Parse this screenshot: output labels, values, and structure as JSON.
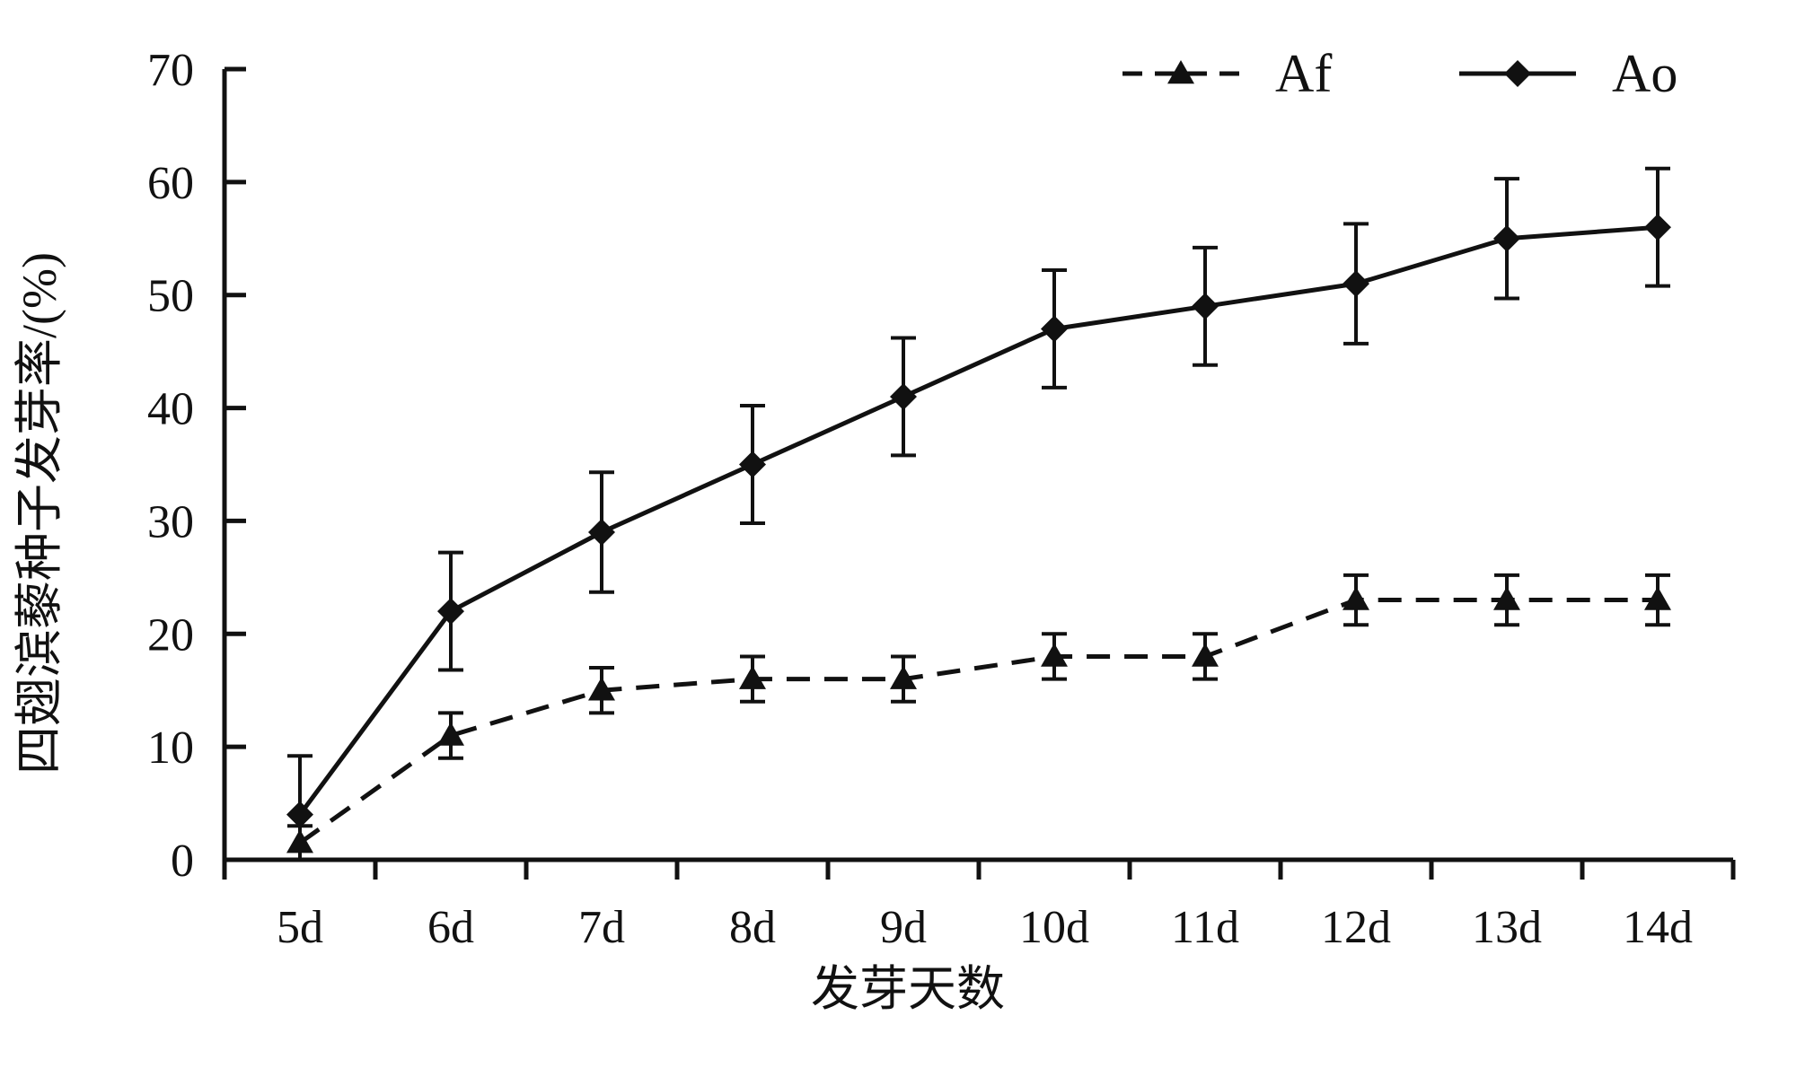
{
  "chart_data": {
    "type": "line",
    "title": "",
    "xlabel": "发芽天数",
    "ylabel": "四翅滨藜种子发芽率/(%)",
    "categories": [
      "5d",
      "6d",
      "7d",
      "8d",
      "9d",
      "10d",
      "11d",
      "12d",
      "13d",
      "14d"
    ],
    "ylim": [
      0,
      70
    ],
    "yticks": [
      0,
      10,
      20,
      30,
      40,
      50,
      60,
      70
    ],
    "grid": false,
    "legend_position": "top-right",
    "series": [
      {
        "name": "Af",
        "line_style": "dashed",
        "marker": "triangle",
        "color": "#111111",
        "values": [
          1.5,
          11,
          15,
          16,
          16,
          18,
          18,
          23,
          23,
          23
        ],
        "errors": [
          1.5,
          2,
          2,
          2,
          2,
          2,
          2,
          2.2,
          2.2,
          2.2
        ]
      },
      {
        "name": "Ao",
        "line_style": "solid",
        "marker": "diamond",
        "color": "#111111",
        "values": [
          4,
          22,
          29,
          35,
          41,
          47,
          49,
          51,
          55,
          56
        ],
        "errors": [
          5.2,
          5.2,
          5.3,
          5.2,
          5.2,
          5.2,
          5.2,
          5.3,
          5.3,
          5.2
        ]
      }
    ]
  }
}
